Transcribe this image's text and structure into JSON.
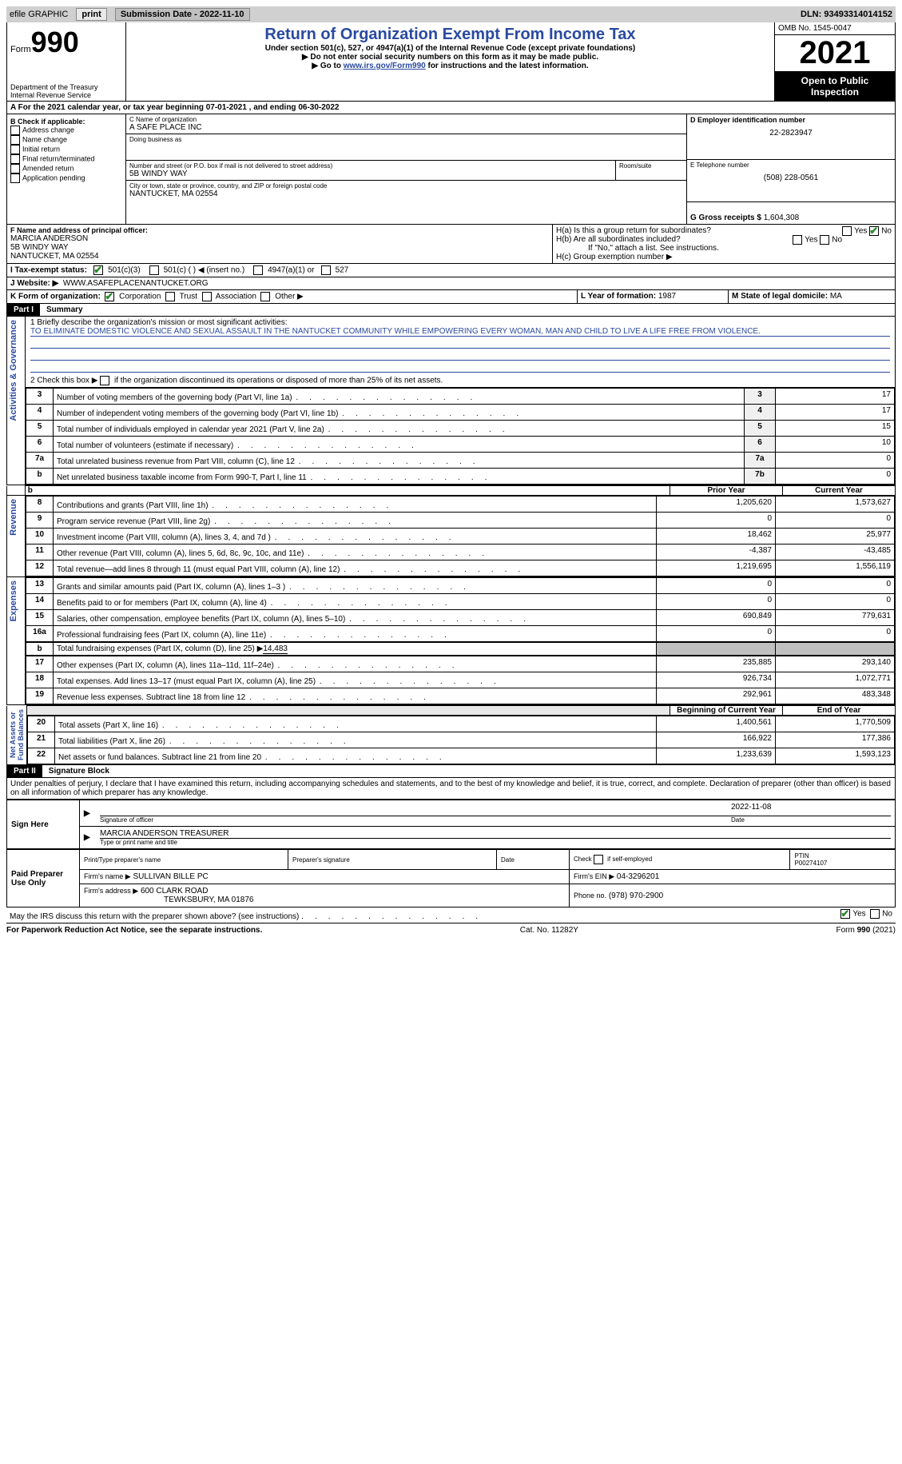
{
  "header": {
    "efile_label": "efile GRAPHIC",
    "print_btn": "print",
    "submission_label": "Submission Date - 2022-11-10",
    "dln_label": "DLN: 93493314014152"
  },
  "form": {
    "form_label": "Form",
    "form_number": "990",
    "title": "Return of Organization Exempt From Income Tax",
    "subtitle": "Under section 501(c), 527, or 4947(a)(1) of the Internal Revenue Code (except private foundations)",
    "instruction1": "▶ Do not enter social security numbers on this form as it may be made public.",
    "instruction2_pre": "▶ Go to ",
    "instruction2_link": "www.irs.gov/Form990",
    "instruction2_post": " for instructions and the latest information.",
    "dept": "Department of the Treasury\nInternal Revenue Service",
    "omb": "OMB No. 1545-0047",
    "year": "2021",
    "open_public": "Open to Public Inspection"
  },
  "section_a": "A For the 2021 calendar year, or tax year beginning 07-01-2021   , and ending 06-30-2022",
  "section_b": {
    "header": "B Check if applicable:",
    "items": [
      "Address change",
      "Name change",
      "Initial return",
      "Final return/terminated",
      "Amended return",
      "Application pending"
    ]
  },
  "section_c": {
    "name_label": "C Name of organization",
    "name": "A SAFE PLACE INC",
    "dba_label": "Doing business as",
    "street_label": "Number and street (or P.O. box if mail is not delivered to street address)",
    "room_label": "Room/suite",
    "street": "5B WINDY WAY",
    "city_label": "City or town, state or province, country, and ZIP or foreign postal code",
    "city": "NANTUCKET, MA  02554"
  },
  "section_d": {
    "label": "D Employer identification number",
    "value": "22-2823947"
  },
  "section_e": {
    "label": "E Telephone number",
    "value": "(508) 228-0561"
  },
  "section_g": {
    "label": "G Gross receipts $",
    "value": "1,604,308"
  },
  "section_f": {
    "label": "F Name and address of principal officer:",
    "name": "MARCIA ANDERSON",
    "street": "5B WINDY WAY",
    "city": "NANTUCKET, MA  02554"
  },
  "section_h": {
    "ha": "H(a)  Is this a group return for subordinates?",
    "hb": "H(b)  Are all subordinates included?",
    "hb_note": "If \"No,\" attach a list. See instructions.",
    "hc": "H(c)  Group exemption number ▶",
    "yes": "Yes",
    "no": "No"
  },
  "section_i": {
    "label": "I    Tax-exempt status:",
    "opts": [
      "501(c)(3)",
      "501(c) (  ) ◀ (insert no.)",
      "4947(a)(1) or",
      "527"
    ]
  },
  "section_j": {
    "label": "J    Website: ▶",
    "value": "WWW.ASAFEPLACENANTUCKET.ORG"
  },
  "section_k": {
    "label": "K Form of organization:",
    "opts": [
      "Corporation",
      "Trust",
      "Association",
      "Other ▶"
    ]
  },
  "section_l": {
    "label": "L Year of formation:",
    "value": "1987"
  },
  "section_m": {
    "label": "M State of legal domicile:",
    "value": "MA"
  },
  "part1": {
    "header": "Part I",
    "title": "Summary",
    "side_labels": [
      "Activities & Governance",
      "Revenue",
      "Expenses",
      "Net Assets or\nFund Balances"
    ],
    "q1_label": "1   Briefly describe the organization's mission or most significant activities:",
    "q1_text": "TO ELIMINATE DOMESTIC VIOLENCE AND SEXUAL ASSAULT IN THE NANTUCKET COMMUNITY WHILE EMPOWERING EVERY WOMAN, MAN AND CHILD TO LIVE A LIFE FREE FROM VIOLENCE.",
    "q2_label": "2   Check this box ▶       if the organization discontinued its operations or disposed of more than 25% of its net assets.",
    "lines_top": [
      {
        "n": "3",
        "label": "Number of voting members of the governing body (Part VI, line 1a)",
        "box": "3",
        "val": "17"
      },
      {
        "n": "4",
        "label": "Number of independent voting members of the governing body (Part VI, line 1b)",
        "box": "4",
        "val": "17"
      },
      {
        "n": "5",
        "label": "Total number of individuals employed in calendar year 2021 (Part V, line 2a)",
        "box": "5",
        "val": "15"
      },
      {
        "n": "6",
        "label": "Total number of volunteers (estimate if necessary)",
        "box": "6",
        "val": "10"
      },
      {
        "n": "7a",
        "label": "Total unrelated business revenue from Part VIII, column (C), line 12",
        "box": "7a",
        "val": "0"
      },
      {
        "n": "b",
        "label": "Net unrelated business taxable income from Form 990-T, Part I, line 11",
        "box": "7b",
        "val": "0"
      }
    ],
    "col_headers": {
      "prior": "Prior Year",
      "current": "Current Year"
    },
    "revenue": [
      {
        "n": "8",
        "label": "Contributions and grants (Part VIII, line 1h)",
        "p": "1,205,620",
        "c": "1,573,627"
      },
      {
        "n": "9",
        "label": "Program service revenue (Part VIII, line 2g)",
        "p": "0",
        "c": "0"
      },
      {
        "n": "10",
        "label": "Investment income (Part VIII, column (A), lines 3, 4, and 7d )",
        "p": "18,462",
        "c": "25,977"
      },
      {
        "n": "11",
        "label": "Other revenue (Part VIII, column (A), lines 5, 6d, 8c, 9c, 10c, and 11e)",
        "p": "-4,387",
        "c": "-43,485"
      },
      {
        "n": "12",
        "label": "Total revenue—add lines 8 through 11 (must equal Part VIII, column (A), line 12)",
        "p": "1,219,695",
        "c": "1,556,119"
      }
    ],
    "expenses": [
      {
        "n": "13",
        "label": "Grants and similar amounts paid (Part IX, column (A), lines 1–3 )",
        "p": "0",
        "c": "0"
      },
      {
        "n": "14",
        "label": "Benefits paid to or for members (Part IX, column (A), line 4)",
        "p": "0",
        "c": "0"
      },
      {
        "n": "15",
        "label": "Salaries, other compensation, employee benefits (Part IX, column (A), lines 5–10)",
        "p": "690,849",
        "c": "779,631"
      },
      {
        "n": "16a",
        "label": "Professional fundraising fees (Part IX, column (A), line 11e)",
        "p": "0",
        "c": "0"
      }
    ],
    "line16b": {
      "n": "b",
      "label": "Total fundraising expenses (Part IX, column (D), line 25) ▶",
      "val": "14,483"
    },
    "expenses2": [
      {
        "n": "17",
        "label": "Other expenses (Part IX, column (A), lines 11a–11d, 11f–24e)",
        "p": "235,885",
        "c": "293,140"
      },
      {
        "n": "18",
        "label": "Total expenses. Add lines 13–17 (must equal Part IX, column (A), line 25)",
        "p": "926,734",
        "c": "1,072,771"
      },
      {
        "n": "19",
        "label": "Revenue less expenses. Subtract line 18 from line 12",
        "p": "292,961",
        "c": "483,348"
      }
    ],
    "col_headers2": {
      "begin": "Beginning of Current Year",
      "end": "End of Year"
    },
    "netassets": [
      {
        "n": "20",
        "label": "Total assets (Part X, line 16)",
        "p": "1,400,561",
        "c": "1,770,509"
      },
      {
        "n": "21",
        "label": "Total liabilities (Part X, line 26)",
        "p": "166,922",
        "c": "177,386"
      },
      {
        "n": "22",
        "label": "Net assets or fund balances. Subtract line 21 from line 20",
        "p": "1,233,639",
        "c": "1,593,123"
      }
    ]
  },
  "part2": {
    "header": "Part II",
    "title": "Signature Block",
    "declaration": "Under penalties of perjury, I declare that I have examined this return, including accompanying schedules and statements, and to the best of my knowledge and belief, it is true, correct, and complete. Declaration of preparer (other than officer) is based on all information of which preparer has any knowledge.",
    "sign_here": "Sign Here",
    "sig_date": "2022-11-08",
    "sig_officer_label": "Signature of officer",
    "date_label": "Date",
    "officer_name": "MARCIA ANDERSON TREASURER",
    "name_title_label": "Type or print name and title",
    "paid": "Paid Preparer Use Only",
    "preparer_name_label": "Print/Type preparer's name",
    "preparer_sig_label": "Preparer's signature",
    "check_self": "Check         if self-employed",
    "ptin_label": "PTIN",
    "ptin": "P00274107",
    "firm_name_label": "Firm's name    ▶",
    "firm_name": "SULLIVAN BILLE PC",
    "firm_ein_label": "Firm's EIN ▶",
    "firm_ein": "04-3296201",
    "firm_addr_label": "Firm's address ▶",
    "firm_addr": "600 CLARK ROAD",
    "firm_city": "TEWKSBURY, MA  01876",
    "phone_label": "Phone no.",
    "phone": "(978) 970-2900",
    "may_irs": "May the IRS discuss this return with the preparer shown above? (see instructions)"
  },
  "footer": {
    "paperwork": "For Paperwork Reduction Act Notice, see the separate instructions.",
    "cat": "Cat. No. 11282Y",
    "form": "Form 990 (2021)"
  }
}
